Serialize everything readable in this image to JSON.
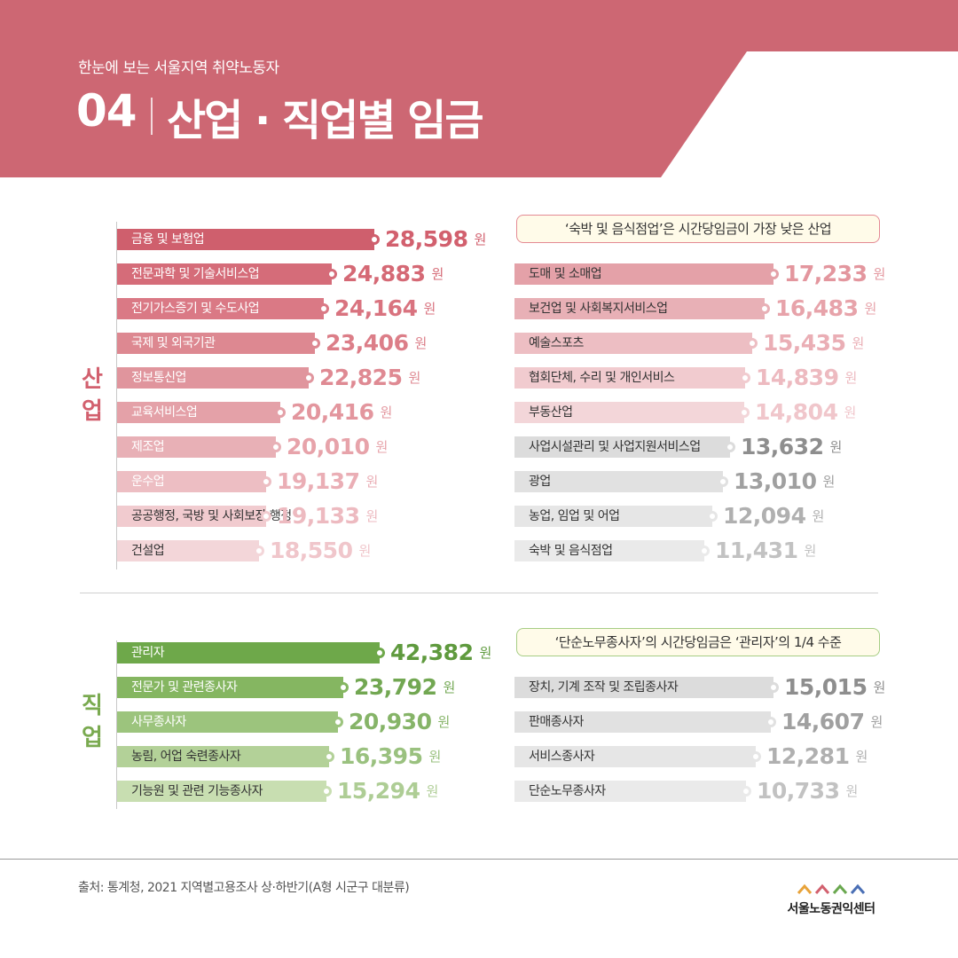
{
  "header": {
    "subtitle": "한눈에 보는 서울지역 취약노동자",
    "number": "04",
    "title": "산업 · 직업별 임금"
  },
  "colors": {
    "header": "#cd6773",
    "industry_accent": "#d2606e",
    "occupation_accent": "#7aaa50",
    "callout_industry_border": "#e48a94",
    "callout_occupation_border": "#a6cd84"
  },
  "chart_data": [
    {
      "type": "bar",
      "title": "",
      "section_label": "산업",
      "value_unit": "원",
      "categories": [
        "금융 및 보험업",
        "전문과학 및 기술서비스업",
        "전기가스증기 및 수도사업",
        "국제 및 외국기관",
        "정보통신업",
        "교육서비스업",
        "제조업",
        "운수업",
        "공공행정, 국방 및 사회보장 행정",
        "건설업",
        "도매 및 소매업",
        "보건업 및 사회복지서비스업",
        "예술스포츠",
        "협회단체, 수리 및 개인서비스",
        "부동산업",
        "사업시설관리 및 사업지원서비스업",
        "광업",
        "농업, 임업 및 어업",
        "숙박 및 음식점업"
      ],
      "values": [
        28598,
        24883,
        24164,
        23406,
        22825,
        20416,
        20010,
        19137,
        19133,
        18550,
        17233,
        16483,
        15435,
        14839,
        14804,
        13632,
        13010,
        12094,
        11431
      ],
      "value_labels": [
        "28,598",
        "24,883",
        "24,164",
        "23,406",
        "22,825",
        "20,416",
        "20,010",
        "19,137",
        "19,133",
        "18,550",
        "17,233",
        "16,483",
        "15,435",
        "14,839",
        "14,804",
        "13,632",
        "13,010",
        "12,094",
        "11,431"
      ],
      "annotation": "‘숙박 및 음식점업’은 시간당임금이 가장 낮은 산업"
    },
    {
      "type": "bar",
      "title": "",
      "section_label": "직업",
      "value_unit": "원",
      "categories": [
        "관리자",
        "전문가 및 관련종사자",
        "사무종사자",
        "농림, 어업 숙련종사자",
        "기능원 및 관련 기능종사자",
        "장치, 기계 조작 및 조립종사자",
        "판매종사자",
        "서비스종사자",
        "단순노무종사자"
      ],
      "values": [
        42382,
        23792,
        20930,
        16395,
        15294,
        15015,
        14607,
        12281,
        10733
      ],
      "value_labels": [
        "42,382",
        "23,792",
        "20,930",
        "16,395",
        "15,294",
        "15,015",
        "14,607",
        "12,281",
        "10,733"
      ],
      "annotation": "‘단순노무종사자’의 시간당임금은 ‘관리자’의 1/4 수준"
    }
  ],
  "footer": {
    "source": "출처: 통계청, 2021 지역별고용조사 상·하반기(A형 시군구 대분류)",
    "logo_text": "서울노동권익센터"
  }
}
